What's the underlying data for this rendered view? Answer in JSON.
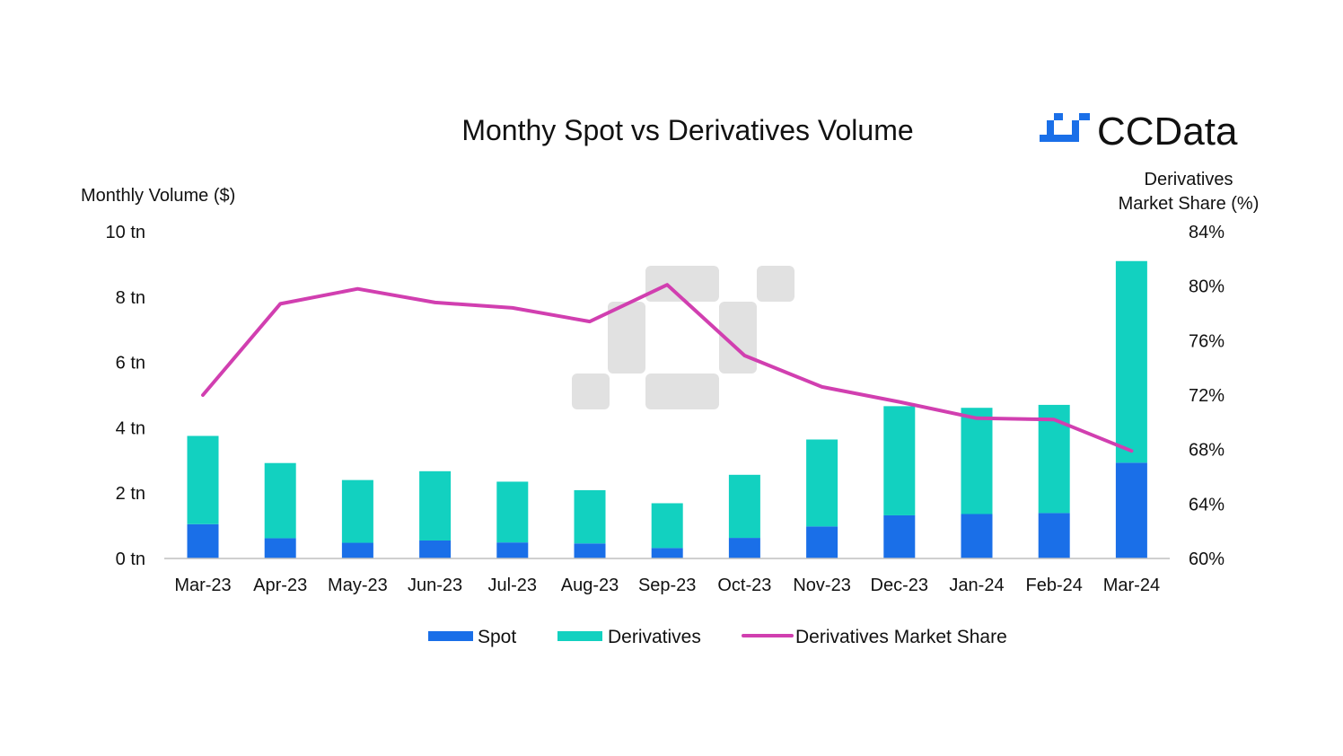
{
  "brand": {
    "name": "CCData",
    "icon": "ccdata-logo-icon",
    "accent": "#1a6fe8"
  },
  "colors": {
    "spot": "#1a6fe8",
    "derivatives": "#12d1c0",
    "share": "#d13fb0",
    "axis": "#bfbfbf",
    "watermark": "#e1e1e1"
  },
  "chart_data": {
    "type": "bar",
    "title": "Monthy Spot vs Derivatives Volume",
    "ylabel": "Monthly Volume ($)",
    "y2label_lines": [
      "Derivatives",
      "Market Share (%)"
    ],
    "ylim": [
      0,
      10
    ],
    "y2lim": [
      60,
      84
    ],
    "yticks": [
      0,
      2,
      4,
      6,
      8,
      10
    ],
    "ytick_labels": [
      "0 tn",
      "2 tn",
      "4 tn",
      "6 tn",
      "8 tn",
      "10 tn"
    ],
    "y2ticks": [
      60,
      64,
      68,
      72,
      76,
      80,
      84
    ],
    "y2tick_labels": [
      "60%",
      "64%",
      "68%",
      "72%",
      "76%",
      "80%",
      "84%"
    ],
    "categories": [
      "Mar-23",
      "Apr-23",
      "May-23",
      "Jun-23",
      "Jul-23",
      "Aug-23",
      "Sep-23",
      "Oct-23",
      "Nov-23",
      "Dec-23",
      "Jan-24",
      "Feb-24",
      "Mar-24"
    ],
    "stacked": true,
    "grid": false,
    "legend_position": "bottom",
    "series": [
      {
        "name": "Spot",
        "type": "bar",
        "values": [
          1.05,
          0.62,
          0.48,
          0.55,
          0.49,
          0.46,
          0.32,
          0.63,
          0.98,
          1.32,
          1.36,
          1.39,
          2.93
        ]
      },
      {
        "name": "Derivatives",
        "type": "bar",
        "values": [
          2.7,
          2.3,
          1.92,
          2.12,
          1.86,
          1.63,
          1.37,
          1.93,
          2.66,
          3.34,
          3.25,
          3.31,
          6.17
        ]
      },
      {
        "name": "Derivatives Market Share",
        "type": "line",
        "axis": "right",
        "values": [
          72.0,
          78.7,
          79.8,
          78.8,
          78.4,
          77.4,
          80.1,
          74.9,
          72.6,
          71.5,
          70.3,
          70.2,
          67.9
        ]
      }
    ]
  }
}
